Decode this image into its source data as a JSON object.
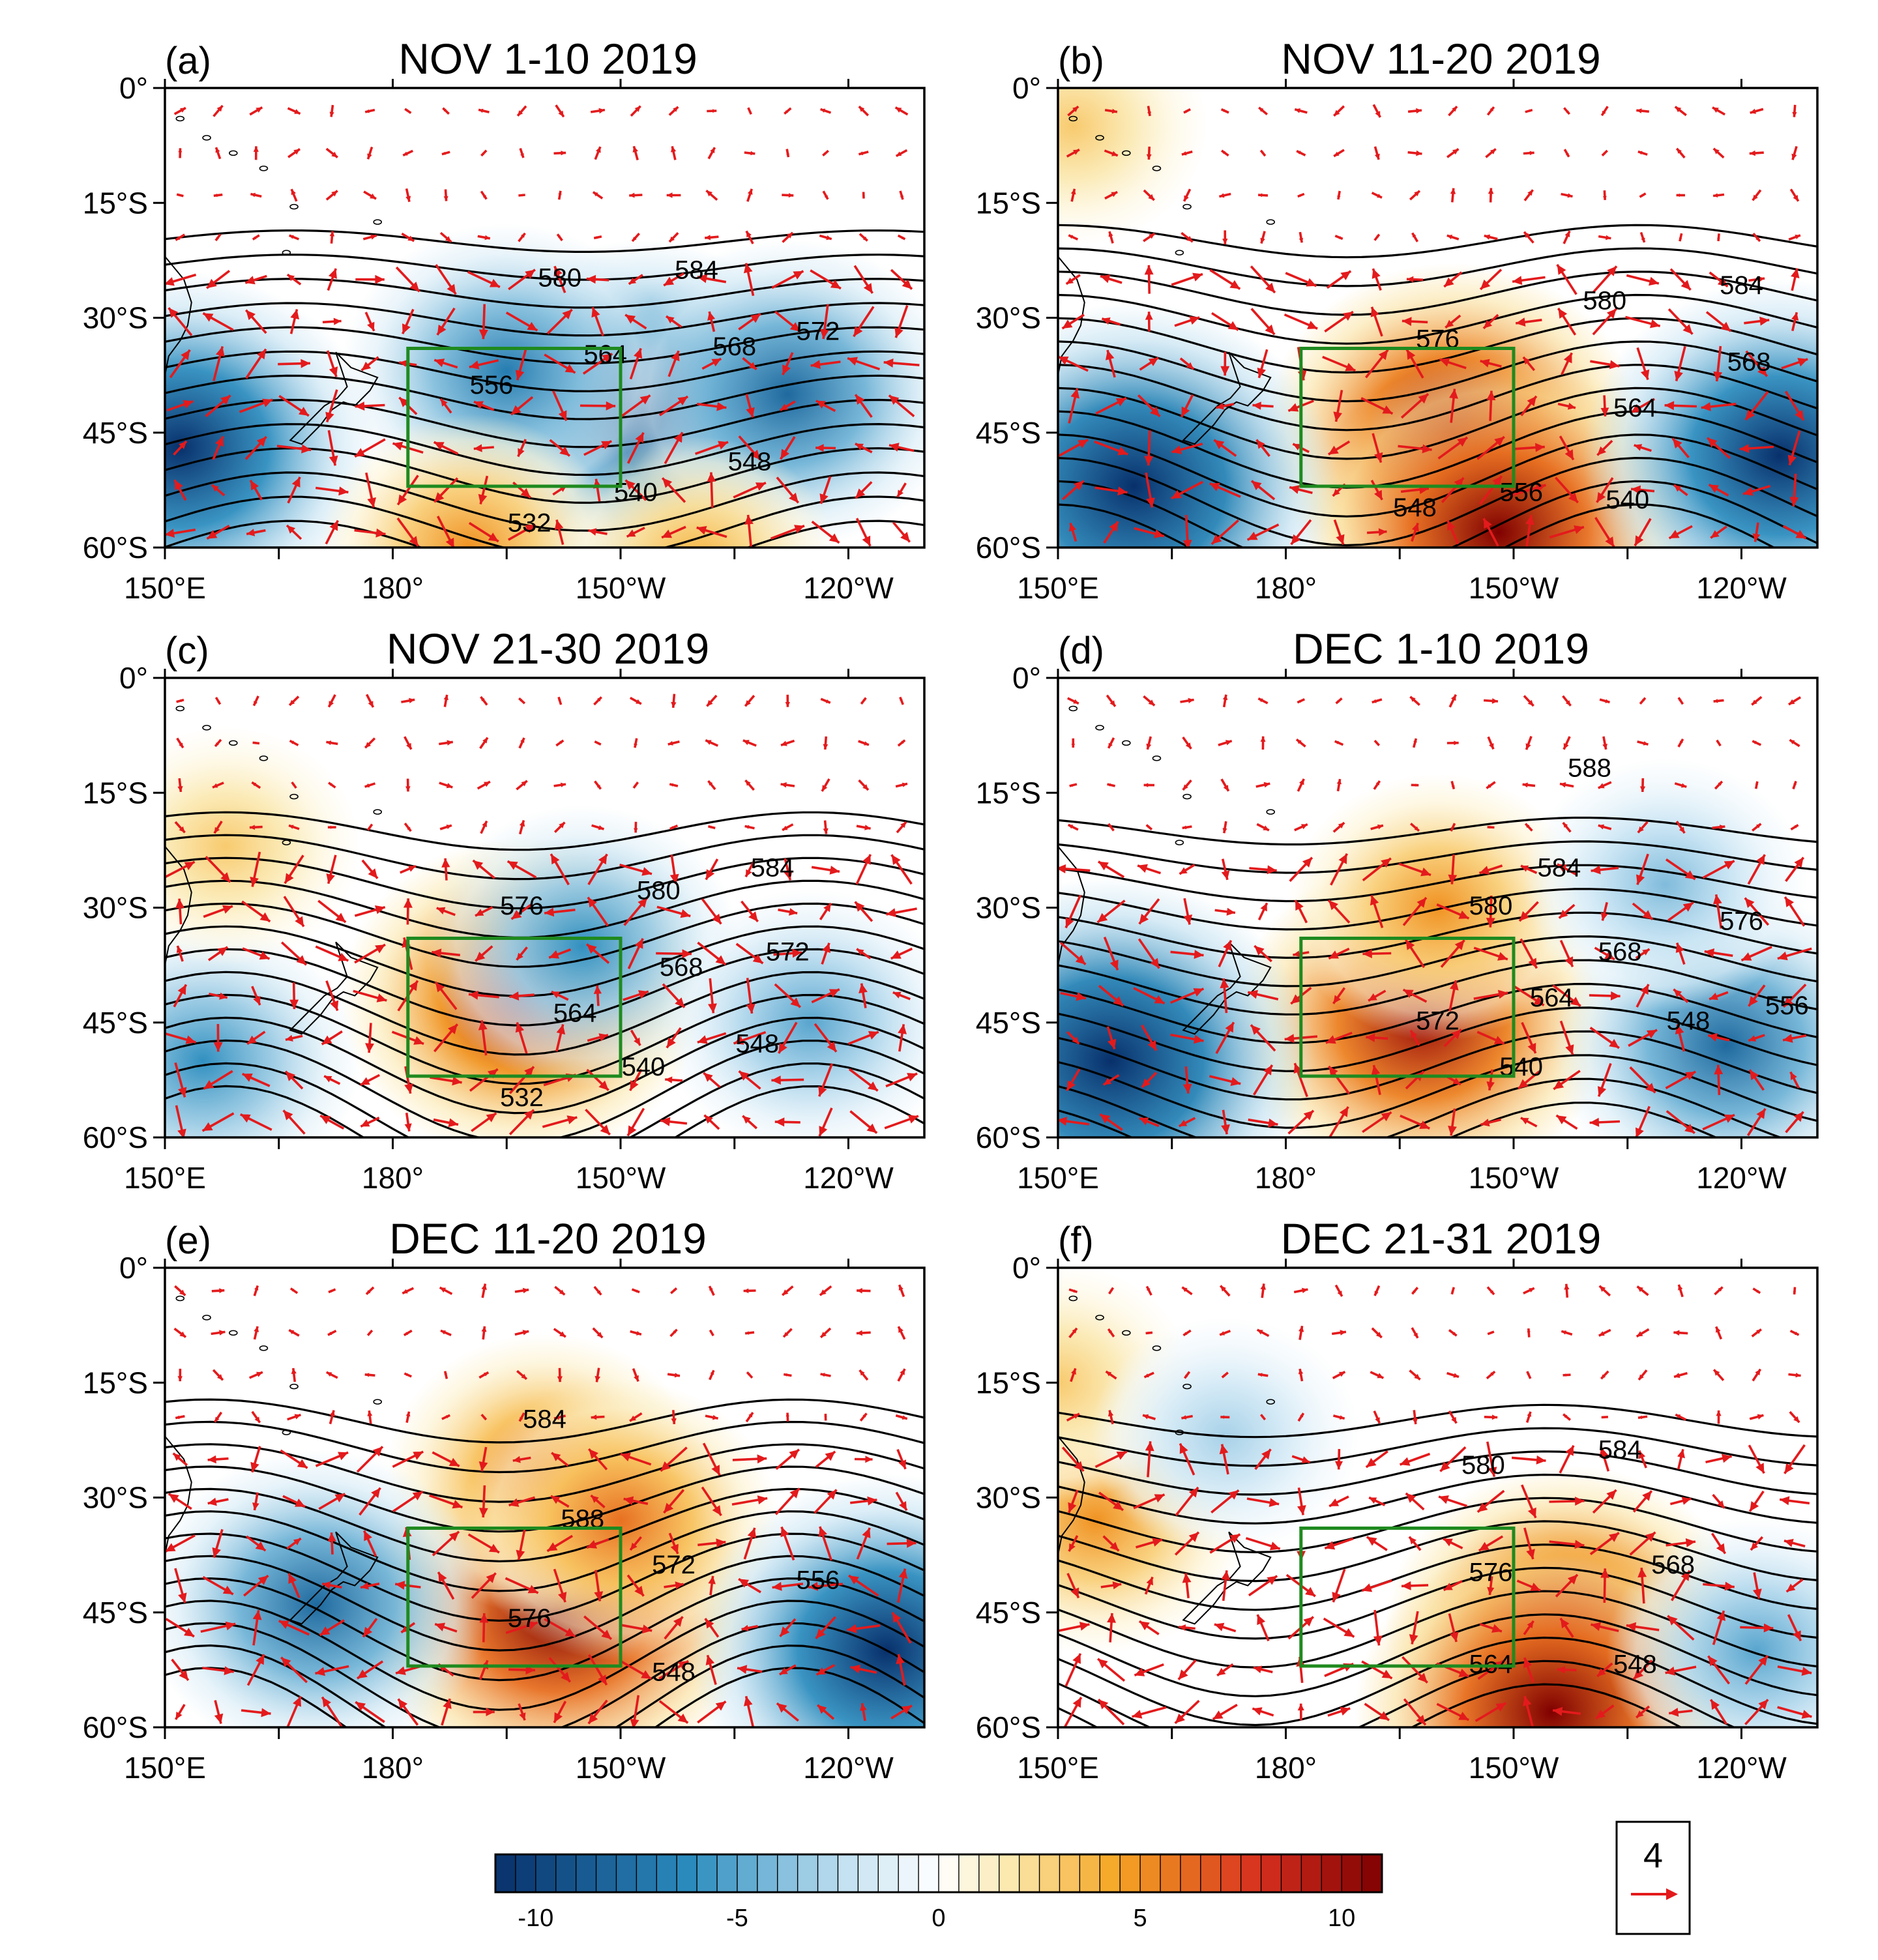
{
  "panels": [
    {
      "label": "(a)",
      "title": "NOV 1-10 2019",
      "anomalies": [
        {
          "lon": -147,
          "lat": -42,
          "amp": -10
        },
        {
          "lon": -165,
          "lat": -37,
          "amp": -7
        },
        {
          "lon": -128,
          "lat": -40,
          "amp": -8
        },
        {
          "lon": 152,
          "lat": -47,
          "amp": -11
        },
        {
          "lon": -170,
          "lat": -60,
          "amp": 5
        },
        {
          "lon": -140,
          "lat": -62,
          "amp": 4
        }
      ],
      "contours": [
        {
          "label": "580",
          "lon": -158,
          "lat": -25
        },
        {
          "label": "584",
          "lon": -140,
          "lat": -24
        },
        {
          "label": "564",
          "lon": -152,
          "lat": -35
        },
        {
          "label": "568",
          "lon": -135,
          "lat": -34
        },
        {
          "label": "572",
          "lon": -124,
          "lat": -32
        },
        {
          "label": "556",
          "lon": -167,
          "lat": -39
        },
        {
          "label": "548",
          "lon": -133,
          "lat": -49
        },
        {
          "label": "540",
          "lon": -148,
          "lat": -53
        },
        {
          "label": "532",
          "lon": -162,
          "lat": -57
        }
      ]
    },
    {
      "label": "(b)",
      "title": "NOV 11-20 2019",
      "anomalies": [
        {
          "lon": -158,
          "lat": -45,
          "amp": 10
        },
        {
          "lon": -152,
          "lat": -58,
          "amp": 11
        },
        {
          "lon": 160,
          "lat": -52,
          "amp": -12
        },
        {
          "lon": -115,
          "lat": -48,
          "amp": -11
        },
        {
          "lon": 152,
          "lat": -5,
          "amp": 3
        }
      ],
      "contours": [
        {
          "label": "584",
          "lon": -120,
          "lat": -26
        },
        {
          "label": "580",
          "lon": -138,
          "lat": -28
        },
        {
          "label": "576",
          "lon": -160,
          "lat": -33
        },
        {
          "label": "568",
          "lon": -119,
          "lat": -36
        },
        {
          "label": "564",
          "lon": -134,
          "lat": -42
        },
        {
          "label": "556",
          "lon": -149,
          "lat": -53
        },
        {
          "label": "548",
          "lon": -163,
          "lat": -55
        },
        {
          "label": "540",
          "lon": -135,
          "lat": -54
        }
      ]
    },
    {
      "label": "(c)",
      "title": "NOV 21-30 2019",
      "anomalies": [
        {
          "lon": -163,
          "lat": -42,
          "amp": 9
        },
        {
          "lon": -155,
          "lat": -35,
          "amp": -6
        },
        {
          "lon": 155,
          "lat": -50,
          "amp": -6
        },
        {
          "lon": -125,
          "lat": -45,
          "amp": -5
        },
        {
          "lon": 158,
          "lat": -22,
          "amp": 3
        }
      ],
      "contours": [
        {
          "label": "584",
          "lon": -130,
          "lat": -25
        },
        {
          "label": "580",
          "lon": -145,
          "lat": -28
        },
        {
          "label": "576",
          "lon": -163,
          "lat": -30
        },
        {
          "label": "572",
          "lon": -128,
          "lat": -36
        },
        {
          "label": "568",
          "lon": -142,
          "lat": -38
        },
        {
          "label": "564",
          "lon": -156,
          "lat": -44
        },
        {
          "label": "548",
          "lon": -132,
          "lat": -48
        },
        {
          "label": "540",
          "lon": -147,
          "lat": -51
        },
        {
          "label": "532",
          "lon": -163,
          "lat": -55
        }
      ]
    },
    {
      "label": "(d)",
      "title": "DEC 1-10 2019",
      "anomalies": [
        {
          "lon": -162,
          "lat": -45,
          "amp": 10
        },
        {
          "lon": -160,
          "lat": -30,
          "amp": 5
        },
        {
          "lon": 157,
          "lat": -50,
          "amp": -12
        },
        {
          "lon": -122,
          "lat": -48,
          "amp": -8
        },
        {
          "lon": -130,
          "lat": -27,
          "amp": -4
        }
      ],
      "contours": [
        {
          "label": "588",
          "lon": -140,
          "lat": -12
        },
        {
          "label": "584",
          "lon": -144,
          "lat": -25
        },
        {
          "label": "580",
          "lon": -153,
          "lat": -30
        },
        {
          "label": "576",
          "lon": -120,
          "lat": -32
        },
        {
          "label": "568",
          "lon": -136,
          "lat": -36
        },
        {
          "label": "564",
          "lon": -145,
          "lat": -42
        },
        {
          "label": "572",
          "lon": -160,
          "lat": -45
        },
        {
          "label": "548",
          "lon": -127,
          "lat": -45
        },
        {
          "label": "556",
          "lon": -114,
          "lat": -43
        },
        {
          "label": "540",
          "lon": -149,
          "lat": -51
        }
      ]
    },
    {
      "label": "(e)",
      "title": "DEC 11-20 2019",
      "anomalies": [
        {
          "lon": -158,
          "lat": -45,
          "amp": 11
        },
        {
          "lon": -160,
          "lat": -27,
          "amp": 6
        },
        {
          "lon": -150,
          "lat": -33,
          "amp": 6
        },
        {
          "lon": 170,
          "lat": -44,
          "amp": -8
        },
        {
          "lon": -115,
          "lat": -50,
          "amp": -11
        }
      ],
      "contours": [
        {
          "label": "584",
          "lon": -160,
          "lat": -20
        },
        {
          "label": "588",
          "lon": -155,
          "lat": -33
        },
        {
          "label": "576",
          "lon": -162,
          "lat": -46
        },
        {
          "label": "572",
          "lon": -143,
          "lat": -39
        },
        {
          "label": "556",
          "lon": -124,
          "lat": -41
        },
        {
          "label": "548",
          "lon": -143,
          "lat": -53
        }
      ]
    },
    {
      "label": "(f)",
      "title": "DEC 21-31 2019",
      "anomalies": [
        {
          "lon": -143,
          "lat": -47,
          "amp": 9
        },
        {
          "lon": -145,
          "lat": -58,
          "amp": 11
        },
        {
          "lon": 155,
          "lat": -33,
          "amp": 5
        },
        {
          "lon": 150,
          "lat": -15,
          "amp": 3
        },
        {
          "lon": 172,
          "lat": -22,
          "amp": -3
        },
        {
          "lon": -118,
          "lat": -50,
          "amp": -5
        }
      ],
      "contours": [
        {
          "label": "580",
          "lon": -154,
          "lat": -26
        },
        {
          "label": "584",
          "lon": -136,
          "lat": -24
        },
        {
          "label": "576",
          "lon": -153,
          "lat": -40
        },
        {
          "label": "568",
          "lon": -129,
          "lat": -39
        },
        {
          "label": "564",
          "lon": -153,
          "lat": -52
        },
        {
          "label": "548",
          "lon": -134,
          "lat": -52
        }
      ]
    }
  ],
  "axes": {
    "x_ticks": [
      "150°E",
      "180°",
      "150°W",
      "120°W"
    ],
    "x_tick_values": [
      150,
      180,
      210,
      240
    ],
    "y_ticks": [
      "0°",
      "15°S",
      "30°S",
      "45°S",
      "60°S"
    ],
    "y_tick_values": [
      0,
      -15,
      -30,
      -45,
      -60
    ],
    "lon_range": [
      150,
      250
    ],
    "lat_range": [
      -60,
      0
    ]
  },
  "box": {
    "lon_min": 182,
    "lon_max": 210,
    "lat_min": -52,
    "lat_max": -34,
    "color": "#1f8a1f"
  },
  "colorbar": {
    "labels": [
      "-10",
      "-5",
      "0",
      "5",
      "10"
    ],
    "values": [
      -10,
      -5,
      0,
      5,
      10
    ],
    "range": [
      -11,
      11
    ],
    "colors": [
      "#08306b",
      "#2b8cbe",
      "#c6e3f3",
      "#ffffff",
      "#fbe9b0",
      "#f5a623",
      "#d7301f",
      "#7f0000"
    ]
  },
  "vector_reference": {
    "label": "4",
    "color": "#e31a1c"
  },
  "colors": {
    "contour": "#000000",
    "vector": "#e31a1c",
    "coast": "#000000"
  }
}
